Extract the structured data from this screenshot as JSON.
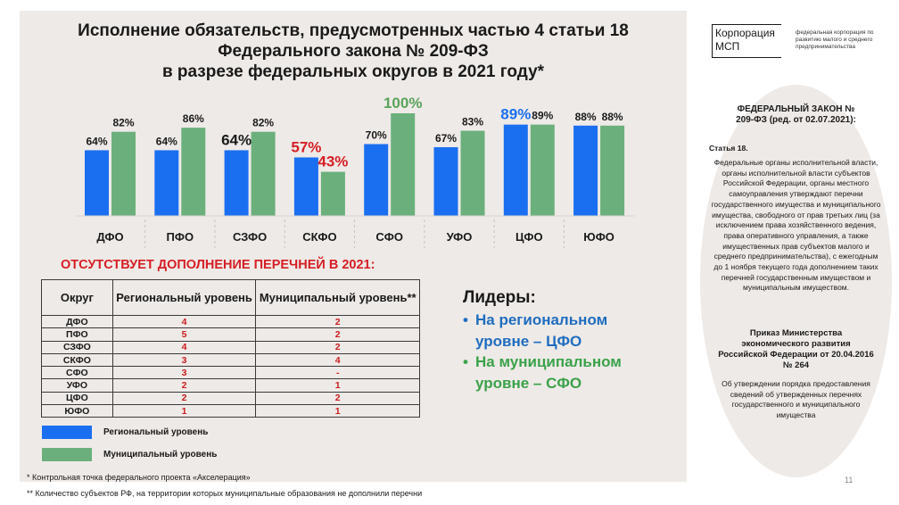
{
  "title": {
    "line1": "Исполнение обязательств, предусмотренных частью 4 статьи 18",
    "line2": "Федерального закона № 209-ФЗ",
    "line3": "в разрезе федеральных округов в 2021 году*"
  },
  "colors": {
    "regional": "#1a6ff0",
    "municipal": "#6bb07c",
    "regional_highlight": "#1a6ff0",
    "municipal_highlight": "#5aa25a",
    "alert_red": "#d51e25",
    "panel_bg": "#eeeae7"
  },
  "chart_data": {
    "type": "bar",
    "categories": [
      "ДФО",
      "ПФО",
      "СЗФО",
      "СКФО",
      "СФО",
      "УФО",
      "ЦФО",
      "ЮФО"
    ],
    "series": [
      {
        "name": "Региональный уровень",
        "values": [
          64,
          64,
          64,
          57,
          70,
          67,
          89,
          88
        ]
      },
      {
        "name": "Муниципальный уровень",
        "values": [
          82,
          86,
          82,
          43,
          100,
          83,
          89,
          88
        ]
      }
    ],
    "labels": {
      "regional": [
        "64%",
        "64%",
        "64%",
        "57%",
        "70%",
        "67%",
        "89%",
        "88%"
      ],
      "municipal": [
        "82%",
        "86%",
        "82%",
        "43%",
        "100%",
        "83%",
        "89%",
        "88%"
      ]
    },
    "highlight": {
      "regional": [
        "normal",
        "normal",
        "big-dark",
        "big-red",
        "normal",
        "normal",
        "big-blue",
        "normal"
      ],
      "municipal": [
        "normal",
        "normal",
        "normal",
        "big-red",
        "big-green",
        "normal",
        "normal",
        "normal"
      ]
    },
    "ylim": [
      0,
      100
    ],
    "grid": false,
    "legend_placement": "bottom-left"
  },
  "missing": {
    "heading": "ОТСУТСТВУЕТ ДОПОЛНЕНИЕ ПЕРЕЧНЕЙ  В 2021:",
    "headers": [
      "Округ",
      "Региональный уровень",
      "Муниципальный уровень**"
    ],
    "rows": [
      {
        "okrug": "ДФО",
        "reg": "4",
        "mun": "2"
      },
      {
        "okrug": "ПФО",
        "reg": "5",
        "mun": "2"
      },
      {
        "okrug": "СЗФО",
        "reg": "4",
        "mun": "2"
      },
      {
        "okrug": "СКФО",
        "reg": "3",
        "mun": "4"
      },
      {
        "okrug": "СФО",
        "reg": "3",
        "mun": "-"
      },
      {
        "okrug": "УФО",
        "reg": "2",
        "mun": "1"
      },
      {
        "okrug": "ЦФО",
        "reg": "2",
        "mun": "2"
      },
      {
        "okrug": "ЮФО",
        "reg": "1",
        "mun": "1"
      }
    ]
  },
  "legend": {
    "regional": "Региональный уровень",
    "municipal": "Муниципальный уровень"
  },
  "leaders": {
    "title": "Лидеры:",
    "items": [
      {
        "bullet": "•",
        "text": "На региональном уровне – ЦФО",
        "color": "#1f6dbf"
      },
      {
        "bullet": "•",
        "text": "На муниципальном уровне – СФО",
        "color": "#3aa24a"
      }
    ]
  },
  "footnotes": {
    "f1": "* Контрольная точка федерального проекта «Акселерация»",
    "f2": "** Количество субъектов РФ, на территории которых муниципальные образования не дополнили перечни"
  },
  "page_number": "11",
  "logo": {
    "line1": "Корпорация",
    "line2": "МСП",
    "subtitle": "федеральная корпорация по развитию малого и среднего предпринимательства"
  },
  "law": {
    "title": "ФЕДЕРАЛЬНЫЙ ЗАКОН № 209-ФЗ (ред. от 02.07.2021):",
    "article": "Статья 18.",
    "body": "Федеральные органы исполнительной власти, органы исполнительной власти субъектов Российской Федерации, органы местного самоуправления утверждают перечни государственного имущества и муниципального имущества, свободного от прав третьих лиц (за исключением права хозяйственного ведения, права оперативного управления, а также имущественных прав субъектов малого и среднего предпринимательства), с ежегодным до 1 ноября текущего года дополнением таких перечней государственным имуществом и муниципальным имуществом.",
    "order_title": "Приказ Министерства экономического развития Российской Федерации от 20.04.2016 № 264",
    "order_body": "Об утверждении порядка предоставления сведений об утвержденных  перечнях государственного и муниципального имущества"
  }
}
